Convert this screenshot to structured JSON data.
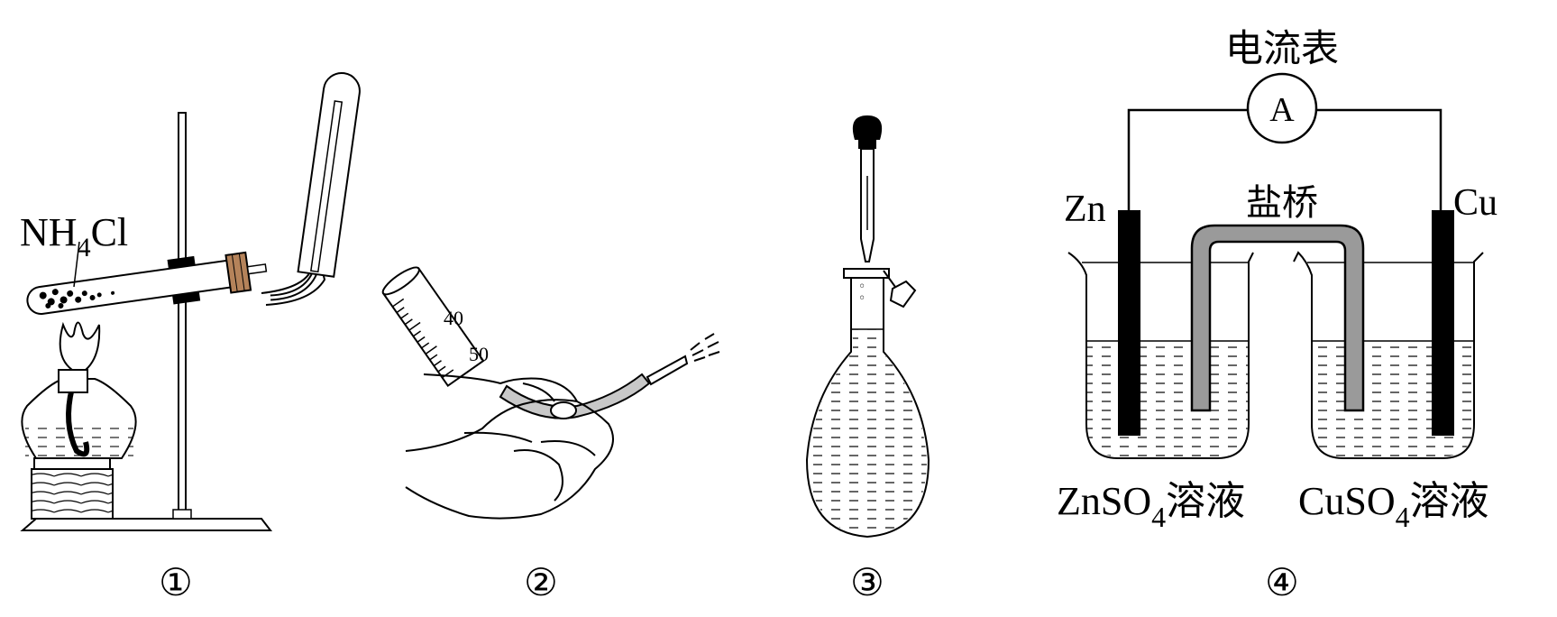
{
  "panels": [
    {
      "number": "①",
      "label": "NH",
      "label_sub": "4",
      "label_tail": "Cl"
    },
    {
      "number": "②",
      "tick_upper": "40",
      "tick_lower": "50"
    },
    {
      "number": "③"
    },
    {
      "number": "④",
      "meter_title": "电流表",
      "meter_symbol": "A",
      "left_electrode": "Zn",
      "right_electrode": "Cu",
      "bridge": "盐桥",
      "left_solution": {
        "main": "ZnSO",
        "sub": "4",
        "tail": "溶液"
      },
      "right_solution": {
        "main": "CuSO",
        "sub": "4",
        "tail": "溶液"
      }
    }
  ],
  "colors": {
    "line": "#000000",
    "copper_stopper": "#b5835a",
    "bridge_fill": "#9a9a9a",
    "tube_gray": "#c8c8c8"
  }
}
